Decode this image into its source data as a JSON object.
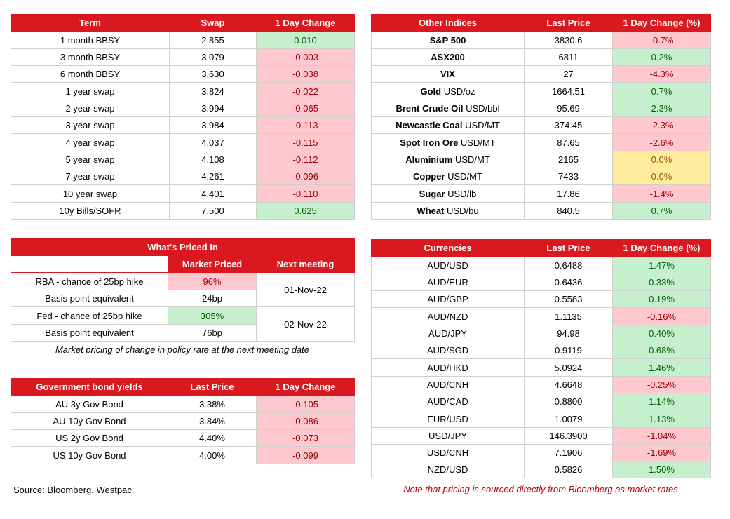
{
  "swap": {
    "headers": [
      "Term",
      "Swap",
      "1 Day Change"
    ],
    "rows": [
      {
        "term": "1 month BBSY",
        "swap": "2.855",
        "change": "0.010",
        "dir": "pos"
      },
      {
        "term": "3 month BBSY",
        "swap": "3.079",
        "change": "-0.003",
        "dir": "neg"
      },
      {
        "term": "6 month BBSY",
        "swap": "3.630",
        "change": "-0.038",
        "dir": "neg"
      },
      {
        "term": "1 year swap",
        "swap": "3.824",
        "change": "-0.022",
        "dir": "neg"
      },
      {
        "term": "2 year swap",
        "swap": "3.994",
        "change": "-0.065",
        "dir": "neg"
      },
      {
        "term": "3 year swap",
        "swap": "3.984",
        "change": "-0.113",
        "dir": "neg"
      },
      {
        "term": "4 year swap",
        "swap": "4.037",
        "change": "-0.115",
        "dir": "neg"
      },
      {
        "term": "5 year swap",
        "swap": "4.108",
        "change": "-0.112",
        "dir": "neg"
      },
      {
        "term": "7 year swap",
        "swap": "4.261",
        "change": "-0.096",
        "dir": "neg"
      },
      {
        "term": "10 year swap",
        "swap": "4.401",
        "change": "-0.110",
        "dir": "neg"
      },
      {
        "term": "10y Bills/SOFR",
        "swap": "7.500",
        "change": "0.625",
        "dir": "pos"
      }
    ]
  },
  "indices": {
    "headers": [
      "Other Indices",
      "Last Price",
      "1 Day Change (%)"
    ],
    "rows": [
      {
        "name_bold": "S&P 500",
        "name_rest": "",
        "price": "3830.6",
        "change": "-0.7%",
        "dir": "neg"
      },
      {
        "name_bold": "ASX200",
        "name_rest": "",
        "price": "6811",
        "change": "0.2%",
        "dir": "pos"
      },
      {
        "name_bold": "VIX",
        "name_rest": "",
        "price": "27",
        "change": "-4.3%",
        "dir": "neg"
      },
      {
        "name_bold": "Gold",
        "name_rest": " USD/oz",
        "price": "1664.51",
        "change": "0.7%",
        "dir": "pos"
      },
      {
        "name_bold": "Brent Crude Oil",
        "name_rest": " USD/bbl",
        "price": "95.69",
        "change": "2.3%",
        "dir": "pos"
      },
      {
        "name_bold": "Newcastle Coal",
        "name_rest": " USD/MT",
        "price": "374.45",
        "change": "-2.3%",
        "dir": "neg"
      },
      {
        "name_bold": "Spot Iron Ore",
        "name_rest": " USD/MT",
        "price": "87.65",
        "change": "-2.6%",
        "dir": "neg"
      },
      {
        "name_bold": "Aluminium",
        "name_rest": " USD/MT",
        "price": "2165",
        "change": "0.0%",
        "dir": "zero"
      },
      {
        "name_bold": "Copper",
        "name_rest": " USD/MT",
        "price": "7433",
        "change": "0.0%",
        "dir": "zero"
      },
      {
        "name_bold": "Sugar",
        "name_rest": " USD/lb",
        "price": "17.86",
        "change": "-1.4%",
        "dir": "neg"
      },
      {
        "name_bold": "Wheat",
        "name_rest": " USD/bu",
        "price": "840.5",
        "change": "0.7%",
        "dir": "pos"
      }
    ]
  },
  "priced": {
    "title": "What's Priced In",
    "headers": [
      "Market Priced",
      "Next meeting"
    ],
    "rows": [
      {
        "label": "RBA - chance of 25bp hike",
        "value": "96%",
        "dir": "neg"
      },
      {
        "label": "Basis point equivalent",
        "value": "24bp",
        "dir": "plain"
      },
      {
        "label": "Fed - chance of 25bp hike",
        "value": "305%",
        "dir": "pos"
      },
      {
        "label": "Basis point equivalent",
        "value": "76bp",
        "dir": "plain"
      }
    ],
    "meetings": [
      "01-Nov-22",
      "02-Nov-22"
    ],
    "note": "Market pricing of change in policy rate at the next meeting date"
  },
  "bonds": {
    "headers": [
      "Government bond yields",
      "Last Price",
      "1 Day Change"
    ],
    "rows": [
      {
        "name": "AU 3y Gov Bond",
        "price": "3.38%",
        "change": "-0.105",
        "dir": "neg"
      },
      {
        "name": "AU 10y Gov Bond",
        "price": "3.84%",
        "change": "-0.086",
        "dir": "neg"
      },
      {
        "name": "US 2y Gov Bond",
        "price": "4.40%",
        "change": "-0.073",
        "dir": "neg"
      },
      {
        "name": "US 10y Gov Bond",
        "price": "4.00%",
        "change": "-0.099",
        "dir": "neg"
      }
    ]
  },
  "currencies": {
    "headers": [
      "Currencies",
      "Last Price",
      "1 Day Change (%)"
    ],
    "rows": [
      {
        "pair": "AUD/USD",
        "price": "0.6488",
        "change": "1.47%",
        "dir": "pos"
      },
      {
        "pair": "AUD/EUR",
        "price": "0.6436",
        "change": "0.33%",
        "dir": "pos"
      },
      {
        "pair": "AUD/GBP",
        "price": "0.5583",
        "change": "0.19%",
        "dir": "pos"
      },
      {
        "pair": "AUD/NZD",
        "price": "1.1135",
        "change": "-0.16%",
        "dir": "neg"
      },
      {
        "pair": "AUD/JPY",
        "price": "94.98",
        "change": "0.40%",
        "dir": "pos"
      },
      {
        "pair": "AUD/SGD",
        "price": "0.9119",
        "change": "0.68%",
        "dir": "pos"
      },
      {
        "pair": "AUD/HKD",
        "price": "5.0924",
        "change": "1.46%",
        "dir": "pos"
      },
      {
        "pair": "AUD/CNH",
        "price": "4.6648",
        "change": "-0.25%",
        "dir": "neg"
      },
      {
        "pair": "AUD/CAD",
        "price": "0.8800",
        "change": "1.14%",
        "dir": "pos"
      },
      {
        "pair": "EUR/USD",
        "price": "1.0079",
        "change": "1.13%",
        "dir": "pos"
      },
      {
        "pair": "USD/JPY",
        "price": "146.3900",
        "change": "-1.04%",
        "dir": "neg"
      },
      {
        "pair": "USD/CNH",
        "price": "7.1906",
        "change": "-1.69%",
        "dir": "neg"
      },
      {
        "pair": "NZD/USD",
        "price": "0.5826",
        "change": "1.50%",
        "dir": "pos"
      }
    ]
  },
  "footer": {
    "source": "Source: Bloomberg, Westpac",
    "note": "Note that pricing is sourced directly from Bloomberg as market rates"
  }
}
